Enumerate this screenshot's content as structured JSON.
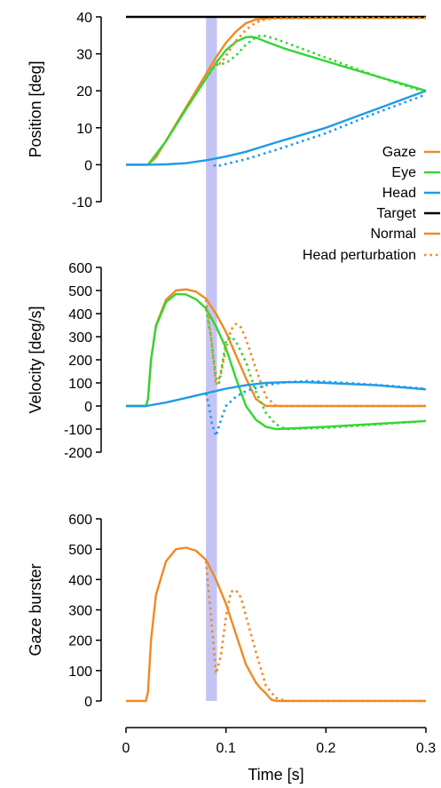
{
  "chart_data": [
    {
      "type": "line",
      "ylabel": "Position [deg]",
      "ylim": [
        -10,
        40
      ],
      "yticks": [
        -10,
        0,
        10,
        20,
        30,
        40
      ],
      "xlim": [
        0,
        0.3
      ],
      "series": [
        {
          "name": "Gaze",
          "style": "solid",
          "color": "#f08a22",
          "x": [
            0,
            0.022,
            0.03,
            0.04,
            0.05,
            0.06,
            0.07,
            0.08,
            0.09,
            0.1,
            0.11,
            0.12,
            0.13,
            0.14,
            0.15,
            0.2,
            0.3
          ],
          "y": [
            0,
            0,
            2,
            6.5,
            11,
            15.5,
            20,
            24.5,
            29,
            33,
            36,
            38.3,
            39.3,
            39.6,
            39.7,
            39.7,
            39.7
          ]
        },
        {
          "name": "Eye",
          "style": "solid",
          "color": "#33d633",
          "x": [
            0,
            0.022,
            0.04,
            0.06,
            0.08,
            0.09,
            0.1,
            0.11,
            0.12,
            0.125,
            0.13,
            0.14,
            0.16,
            0.2,
            0.25,
            0.3
          ],
          "y": [
            0,
            0,
            6.4,
            15,
            23.3,
            27.5,
            31,
            33.3,
            34.5,
            34.6,
            34.4,
            33.3,
            31.3,
            28,
            24,
            20
          ]
        },
        {
          "name": "Head",
          "style": "solid",
          "color": "#1e9be8",
          "x": [
            0,
            0.02,
            0.04,
            0.06,
            0.08,
            0.1,
            0.12,
            0.15,
            0.2,
            0.25,
            0.3
          ],
          "y": [
            0,
            0,
            0.1,
            0.4,
            1.2,
            2.2,
            3.5,
            6,
            10,
            15,
            20
          ]
        },
        {
          "name": "Target",
          "style": "solid",
          "color": "#000000",
          "x": [
            0,
            0.3
          ],
          "y": [
            40,
            40
          ]
        },
        {
          "name": "Gaze (perturbed)",
          "style": "dotted",
          "color": "#f08a22",
          "x": [
            0.08,
            0.085,
            0.09,
            0.095,
            0.1,
            0.11,
            0.12,
            0.13,
            0.14,
            0.15,
            0.2,
            0.3
          ],
          "y": [
            24.5,
            26.5,
            27,
            27.5,
            29.5,
            33.5,
            36.5,
            38.5,
            39.4,
            39.6,
            39.7,
            39.7
          ]
        },
        {
          "name": "Eye (perturbed)",
          "style": "dotted",
          "color": "#33d633",
          "x": [
            0.08,
            0.09,
            0.1,
            0.11,
            0.12,
            0.13,
            0.135,
            0.14,
            0.15,
            0.17,
            0.2,
            0.25,
            0.3
          ],
          "y": [
            23.3,
            27,
            27.5,
            29.5,
            32.5,
            34.5,
            35,
            34.8,
            34,
            32,
            29,
            24,
            19.6
          ]
        },
        {
          "name": "Head (perturbed)",
          "style": "dotted",
          "color": "#1e9be8",
          "x": [
            0.088,
            0.09,
            0.1,
            0.12,
            0.15,
            0.2,
            0.25,
            0.3
          ],
          "y": [
            0,
            -0.5,
            0.2,
            1.5,
            4,
            8.5,
            14,
            19
          ]
        }
      ]
    },
    {
      "type": "line",
      "ylabel": "Velocity [deg/s]",
      "ylim": [
        -200,
        600
      ],
      "yticks": [
        -200,
        -100,
        0,
        100,
        200,
        300,
        400,
        500,
        600
      ],
      "xlim": [
        0,
        0.3
      ],
      "series": [
        {
          "name": "Gaze",
          "style": "solid",
          "color": "#f08a22",
          "x": [
            0,
            0.02,
            0.022,
            0.025,
            0.03,
            0.04,
            0.05,
            0.06,
            0.07,
            0.08,
            0.09,
            0.1,
            0.11,
            0.12,
            0.13,
            0.14,
            0.15,
            0.2,
            0.3
          ],
          "y": [
            0,
            0,
            30,
            200,
            350,
            460,
            500,
            505,
            495,
            465,
            400,
            320,
            220,
            120,
            30,
            0,
            0,
            0,
            0
          ]
        },
        {
          "name": "Eye",
          "style": "solid",
          "color": "#33d633",
          "x": [
            0,
            0.02,
            0.022,
            0.025,
            0.03,
            0.04,
            0.05,
            0.06,
            0.07,
            0.08,
            0.09,
            0.1,
            0.11,
            0.12,
            0.13,
            0.14,
            0.15,
            0.2,
            0.3
          ],
          "y": [
            0,
            0,
            30,
            200,
            345,
            450,
            485,
            483,
            462,
            423,
            345,
            250,
            120,
            0,
            -60,
            -90,
            -100,
            -90,
            -65
          ]
        },
        {
          "name": "Head",
          "style": "solid",
          "color": "#1e9be8",
          "x": [
            0,
            0.02,
            0.04,
            0.06,
            0.08,
            0.1,
            0.12,
            0.14,
            0.16,
            0.18,
            0.2,
            0.25,
            0.3
          ],
          "y": [
            0,
            0,
            15,
            35,
            55,
            75,
            90,
            100,
            103,
            103,
            100,
            90,
            72
          ]
        },
        {
          "name": "Gaze (perturbed)",
          "style": "dotted",
          "color": "#f08a22",
          "x": [
            0.08,
            0.085,
            0.09,
            0.095,
            0.1,
            0.105,
            0.11,
            0.115,
            0.12,
            0.13,
            0.14,
            0.15,
            0.2,
            0.3
          ],
          "y": [
            460,
            300,
            90,
            140,
            250,
            330,
            355,
            340,
            290,
            160,
            40,
            0,
            0,
            0
          ]
        },
        {
          "name": "Eye (perturbed)",
          "style": "dotted",
          "color": "#33d633",
          "x": [
            0.08,
            0.085,
            0.09,
            0.093,
            0.097,
            0.1,
            0.105,
            0.11,
            0.12,
            0.13,
            0.14,
            0.15,
            0.16,
            0.2,
            0.3
          ],
          "y": [
            420,
            300,
            120,
            100,
            200,
            280,
            300,
            280,
            190,
            60,
            -30,
            -80,
            -100,
            -95,
            -65
          ]
        },
        {
          "name": "Head (perturbed)",
          "style": "dotted",
          "color": "#1e9be8",
          "x": [
            0.08,
            0.083,
            0.086,
            0.09,
            0.095,
            0.1,
            0.11,
            0.12,
            0.14,
            0.16,
            0.18,
            0.2,
            0.25,
            0.3
          ],
          "y": [
            55,
            0,
            -80,
            -130,
            -60,
            0,
            40,
            65,
            90,
            103,
            108,
            105,
            92,
            75
          ]
        }
      ]
    },
    {
      "type": "line",
      "ylabel": "Gaze burster",
      "xlabel": "Time [s]",
      "ylim": [
        0,
        600
      ],
      "yticks": [
        0,
        100,
        200,
        300,
        400,
        500,
        600
      ],
      "xlim": [
        0,
        0.3
      ],
      "xticks": [
        0,
        0.1,
        0.2,
        0.3
      ],
      "xticklabels": [
        "0",
        "0.1",
        "0.2",
        "0.3"
      ],
      "series": [
        {
          "name": "Normal",
          "style": "solid",
          "color": "#f08a22",
          "x": [
            0,
            0.02,
            0.022,
            0.025,
            0.03,
            0.04,
            0.05,
            0.06,
            0.07,
            0.08,
            0.09,
            0.1,
            0.11,
            0.12,
            0.13,
            0.135,
            0.14,
            0.145,
            0.15,
            0.2,
            0.3
          ],
          "y": [
            0,
            0,
            30,
            200,
            350,
            460,
            500,
            505,
            495,
            465,
            400,
            320,
            220,
            120,
            60,
            40,
            25,
            5,
            0,
            0,
            0
          ]
        },
        {
          "name": "Head perturbation",
          "style": "dotted",
          "color": "#f08a22",
          "x": [
            0.08,
            0.085,
            0.09,
            0.095,
            0.1,
            0.105,
            0.11,
            0.115,
            0.12,
            0.13,
            0.14,
            0.15,
            0.16,
            0.2,
            0.3
          ],
          "y": [
            460,
            280,
            90,
            150,
            280,
            360,
            365,
            340,
            280,
            160,
            50,
            10,
            0,
            0,
            0
          ]
        }
      ]
    }
  ],
  "legend": {
    "placement": "right",
    "entries": [
      {
        "label": "Gaze",
        "color": "#f08a22",
        "style": "solid"
      },
      {
        "label": "Eye",
        "color": "#33d633",
        "style": "solid"
      },
      {
        "label": "Head",
        "color": "#1e9be8",
        "style": "solid"
      },
      {
        "label": "Target",
        "color": "#000000",
        "style": "solid"
      },
      {
        "label": "Normal",
        "color": "#f08a22",
        "style": "solid"
      },
      {
        "label": "Head perturbation",
        "color": "#f08a22",
        "style": "dotted"
      }
    ]
  },
  "perturbation_band": {
    "x_start": 0.08,
    "x_end": 0.091,
    "color": "#c4c4f4"
  }
}
